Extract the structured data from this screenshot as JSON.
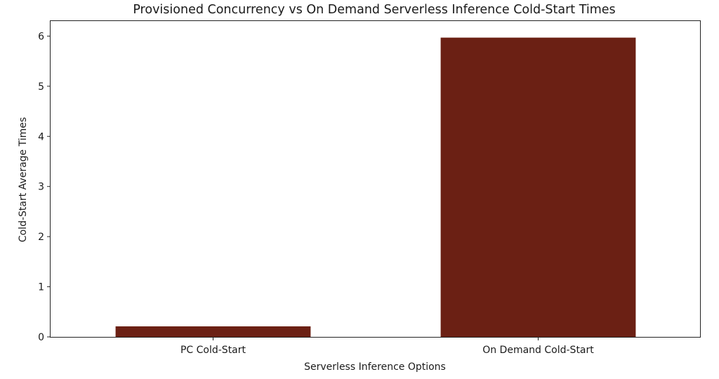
{
  "chart_data": {
    "type": "bar",
    "title": "Provisioned Concurrency vs On Demand Serverless Inference Cold-Start Times",
    "xlabel": "Serverless Inference Options",
    "ylabel": "Cold-Start Average Times",
    "categories": [
      "PC Cold-Start",
      "On Demand Cold-Start"
    ],
    "values": [
      0.21,
      5.97
    ],
    "ylim": [
      0,
      6.3
    ],
    "yticks": [
      "0",
      "1",
      "2",
      "3",
      "4",
      "5",
      "6"
    ],
    "bar_color": "#6b2014",
    "grid": false,
    "legend": "none"
  }
}
